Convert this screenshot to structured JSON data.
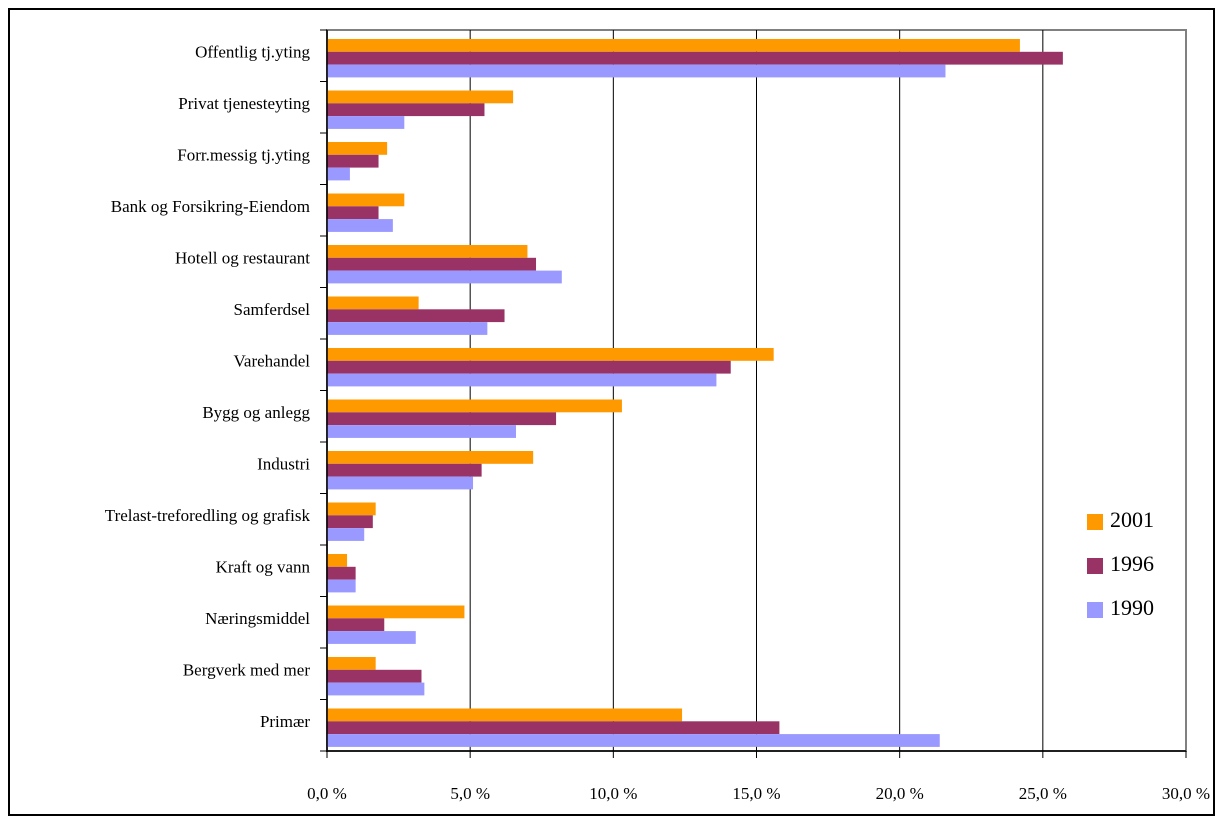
{
  "chart_data": {
    "type": "bar",
    "orientation": "horizontal",
    "categories": [
      "Offentlig tj.yting",
      "Privat tjenesteyting",
      "Forr.messig tj.yting",
      "Bank og Forsikring-Eiendom",
      "Hotell og restaurant",
      "Samferdsel",
      "Varehandel",
      "Bygg og anlegg",
      "Industri",
      "Trelast-treforedling og grafisk",
      "Kraft og vann",
      "Næringsmiddel",
      "Bergverk med mer",
      "Primær"
    ],
    "series": [
      {
        "name": "2001",
        "color": "#ff9900",
        "values": [
          24.2,
          6.5,
          2.1,
          2.7,
          7.0,
          3.2,
          15.6,
          10.3,
          7.2,
          1.7,
          0.7,
          4.8,
          1.7,
          12.4
        ]
      },
      {
        "name": "1996",
        "color": "#993366",
        "values": [
          25.7,
          5.5,
          1.8,
          1.8,
          7.3,
          6.2,
          14.1,
          8.0,
          5.4,
          1.6,
          1.0,
          2.0,
          3.3,
          15.8
        ]
      },
      {
        "name": "1990",
        "color": "#9999ff",
        "values": [
          21.6,
          2.7,
          0.8,
          2.3,
          8.2,
          5.6,
          13.6,
          6.6,
          5.1,
          1.3,
          1.0,
          3.1,
          3.4,
          21.4
        ]
      }
    ],
    "x_ticks": [
      "0,0 %",
      "5,0 %",
      "10,0 %",
      "15,0 %",
      "20,0 %",
      "25,0 %",
      "30,0 %"
    ],
    "xlim": [
      0,
      30
    ],
    "grid": true,
    "legend_position": "right",
    "title": "",
    "xlabel": "",
    "ylabel": ""
  }
}
